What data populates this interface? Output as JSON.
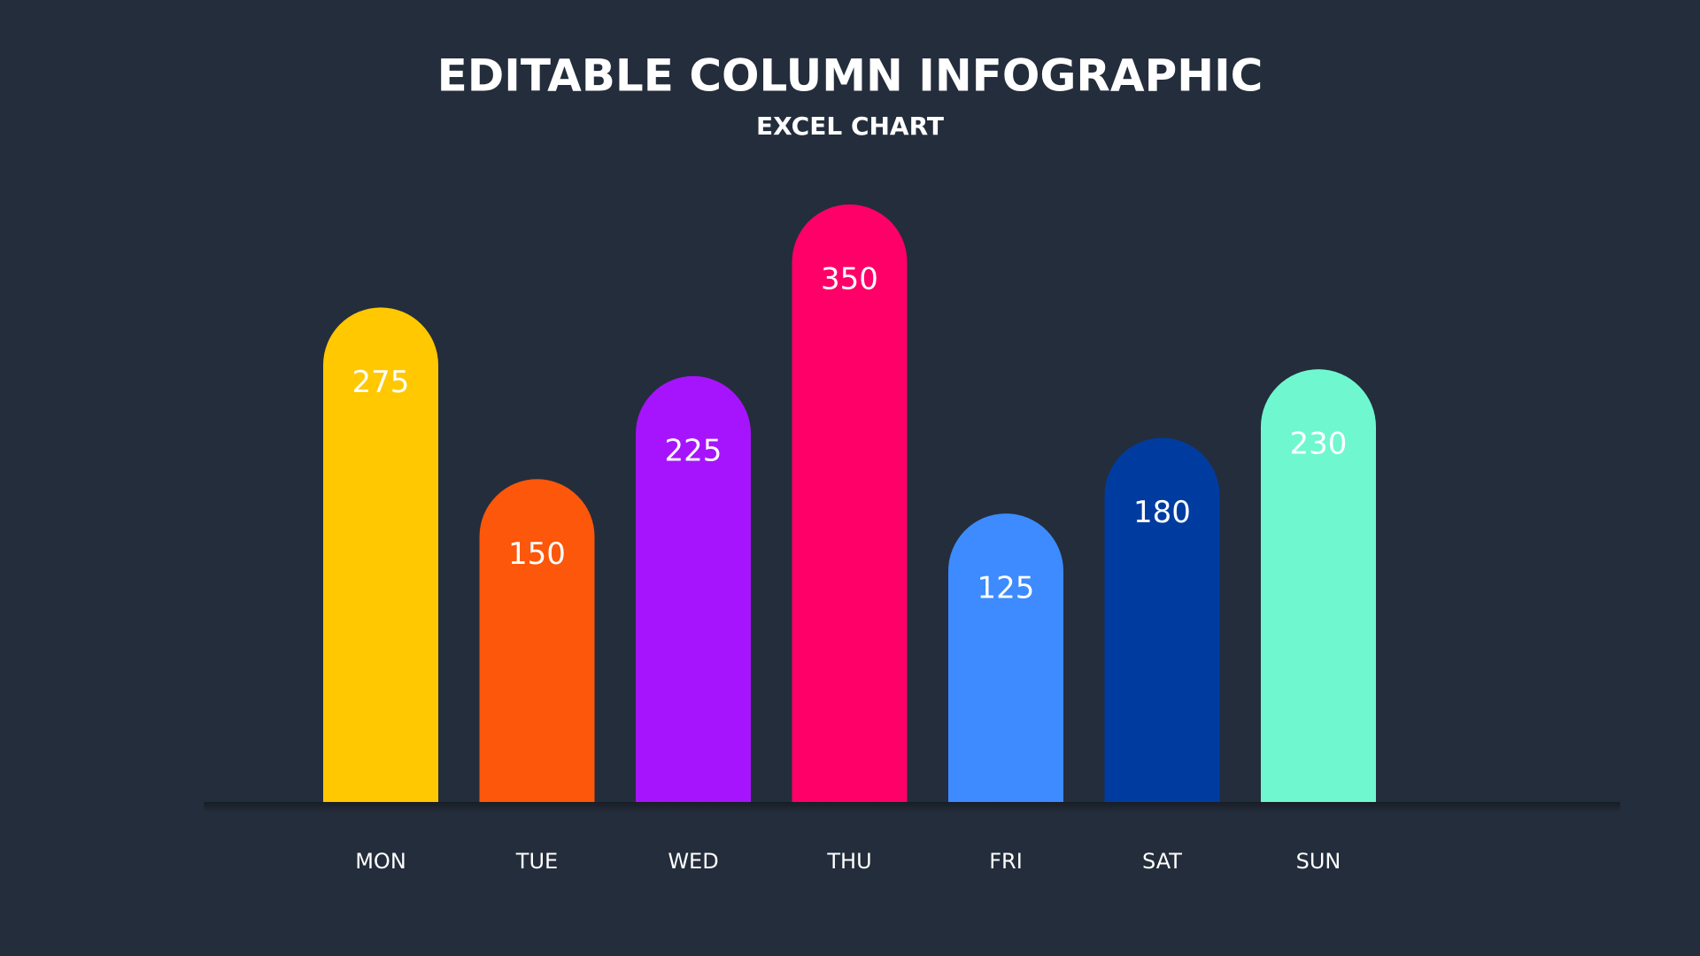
{
  "chart_data": {
    "type": "bar",
    "title": "EDITABLE COLUMN INFOGRAPHIC",
    "subtitle": "EXCEL CHART",
    "categories": [
      "MON",
      "TUE",
      "WED",
      "THU",
      "FRI",
      "SAT",
      "SUN"
    ],
    "values": [
      275,
      150,
      225,
      350,
      125,
      180,
      230
    ],
    "colors": [
      "#ffc800",
      "#fc570a",
      "#a614fd",
      "#ff0069",
      "#3d8bff",
      "#003ca0",
      "#6ff8cf"
    ]
  }
}
